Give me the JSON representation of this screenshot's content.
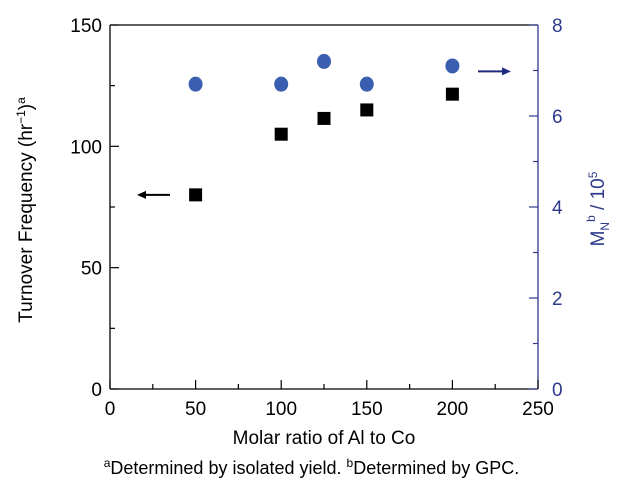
{
  "chart_data": {
    "type": "scatter",
    "xlabel": "Molar ratio of Al to Co",
    "xlim": [
      0,
      250
    ],
    "xticks": [
      0,
      50,
      100,
      150,
      200,
      250
    ],
    "ylabel": {
      "main": "Turnover Frequency (hr",
      "sup": "−1",
      "close": ")",
      "sup2": "a"
    },
    "ylim": [
      0,
      150
    ],
    "yticks": [
      0,
      50,
      100,
      150
    ],
    "y2label": {
      "main": "M",
      "sub": "N",
      "sup": "b",
      "rest": " / 10",
      "sup2": "5"
    },
    "y2lim": [
      0,
      8
    ],
    "y2ticks": [
      0,
      2,
      4,
      6,
      8
    ],
    "series": [
      {
        "marker": "square",
        "color": "#000000",
        "axis": "left",
        "x": [
          50,
          100,
          125,
          150,
          200
        ],
        "y": [
          80,
          105,
          111.5,
          115,
          121.5
        ]
      },
      {
        "marker": "circle",
        "color": "#3a5fb0",
        "axis": "right",
        "x": [
          50,
          100,
          125,
          150,
          200
        ],
        "y": [
          6.7,
          6.7,
          7.2,
          6.7,
          7.1
        ]
      }
    ],
    "colors": {
      "right_axis": "#2e3a8c",
      "left_axis": "#000000"
    }
  },
  "footnote": {
    "a_mark": "a",
    "a_text": "Determined by isolated yield. ",
    "b_mark": "b",
    "b_text": "Determined by GPC."
  }
}
